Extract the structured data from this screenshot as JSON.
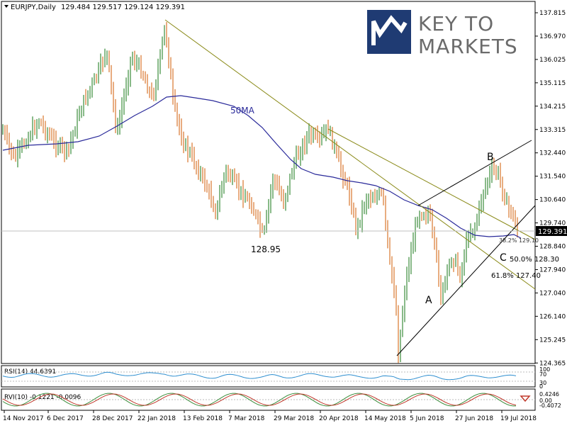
{
  "header": {
    "symbol_text": "EURJPY,Daily",
    "ohlc_text": "129.484 129.517 129.124 129.391"
  },
  "logo": {
    "line1": "KEY TO",
    "line2": "MARKETS"
  },
  "chart_data": [
    {
      "type": "candlestick",
      "title": "EURJPY,Daily",
      "ohlc": {
        "open": 129.484,
        "high": 129.517,
        "low": 129.124,
        "close": 129.391
      },
      "current_price_label": "129.391",
      "ylim": [
        124.365,
        138.0
      ],
      "y_ticks": [
        "137.815",
        "136.970",
        "136.025",
        "135.115",
        "134.215",
        "133.315",
        "132.440",
        "131.540",
        "130.640",
        "129.740",
        "128.840",
        "127.940",
        "127.040",
        "126.140",
        "125.245",
        "124.365"
      ],
      "x_ticks": [
        "14 Nov 2017",
        "6 Dec 2017",
        "28 Dec 2017",
        "22 Jan 2018",
        "13 Feb 2018",
        "7 Mar 2018",
        "29 Mar 2018",
        "20 Apr 2018",
        "14 May 2018",
        "5 Jun 2018",
        "27 Jun 2018",
        "19 Jul 2018"
      ],
      "ma_label": "50MA",
      "annotations": {
        "low_label": "128.95",
        "wave_a": "A",
        "wave_b": "B",
        "wave_c": "C",
        "fib_382": "38.2% 129.10",
        "fib_500": "50.0% 128.30",
        "fib_618": "61.8% 127.40"
      }
    },
    {
      "type": "line",
      "title": "RSI(14) 44.6391",
      "y_ticks": [
        "100",
        "70",
        "30",
        "0"
      ]
    },
    {
      "type": "line",
      "title": "RVI(10) -0.1221 -0.0096",
      "y_ticks": [
        "0.4246",
        "0.00",
        "-0.4072"
      ]
    }
  ],
  "colors": {
    "bull": "#3a8c3a",
    "bear": "#d9762b",
    "ma": "#2a2a9a",
    "trend_olive": "#8a8a18",
    "rvi_main": "#3a8c3a",
    "rvi_signal": "#c0392b",
    "rsi": "#2f8fd0"
  }
}
